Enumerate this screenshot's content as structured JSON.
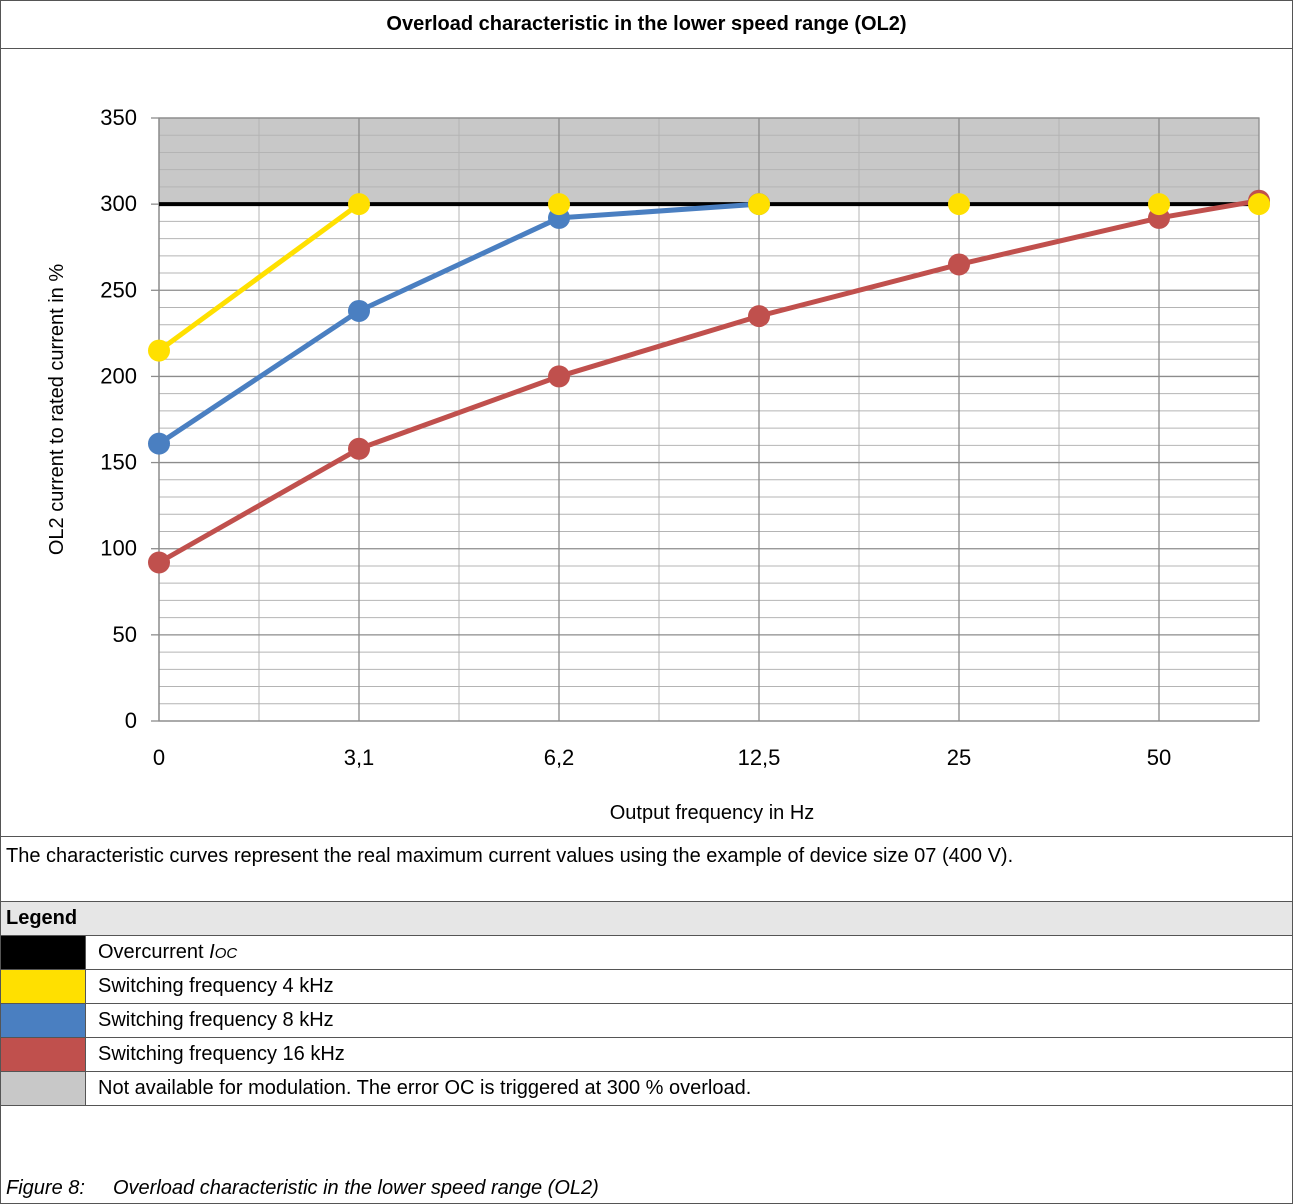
{
  "header": {
    "title": "Overload characteristic in the lower speed range (OL2)"
  },
  "chart_data": {
    "type": "line",
    "xlabel": "Output frequency in Hz",
    "ylabel": "OL2 current to rated current in %",
    "categories": [
      "0",
      "3,1",
      "6,2",
      "12,5",
      "25",
      "50",
      ""
    ],
    "ylim": [
      0,
      350
    ],
    "yticks": [
      0,
      50,
      100,
      150,
      200,
      250,
      300,
      350
    ],
    "grid": true,
    "shaded_region": {
      "from": 300,
      "to": 350,
      "color": "#c8c8c8"
    },
    "threshold_line": {
      "value": 300,
      "color": "#000000"
    },
    "series": [
      {
        "color": "#ffe000",
        "points": [
          [
            0,
            215
          ],
          [
            1,
            300
          ]
        ],
        "markers_only": [
          [
            2,
            300
          ],
          [
            3,
            300
          ],
          [
            4,
            300
          ],
          [
            5,
            300
          ],
          [
            5.5,
            300
          ]
        ]
      },
      {
        "color": "#4a7fc1",
        "points": [
          [
            0,
            161
          ],
          [
            1,
            238
          ],
          [
            2,
            292
          ],
          [
            3,
            300
          ]
        ]
      },
      {
        "color": "#c0504d",
        "points": [
          [
            0,
            92
          ],
          [
            1,
            158
          ],
          [
            2,
            200
          ],
          [
            3,
            235
          ],
          [
            4,
            265
          ],
          [
            5,
            292
          ],
          [
            5.5,
            302
          ]
        ]
      }
    ]
  },
  "note": {
    "text": "The characteristic curves represent the real maximum current values using the example of device size 07 (400 V)."
  },
  "legend": {
    "heading": "Legend",
    "items": [
      {
        "color": "#000000",
        "label": "Overcurrent ",
        "label_italic": "IOC"
      },
      {
        "color": "#ffe000",
        "label": "Switching frequency 4 kHz",
        "label_italic": ""
      },
      {
        "color": "#4a7fc1",
        "label": "Switching frequency 8 kHz",
        "label_italic": ""
      },
      {
        "color": "#c0504d",
        "label": "Switching frequency 16 kHz",
        "label_italic": ""
      },
      {
        "color": "#c8c8c8",
        "label": "Not available for modulation. The error OC is triggered at 300 % overload.",
        "label_italic": ""
      }
    ]
  },
  "caption": {
    "number": "Figure 8:",
    "text": "Overload characteristic in the lower speed range (OL2)"
  }
}
